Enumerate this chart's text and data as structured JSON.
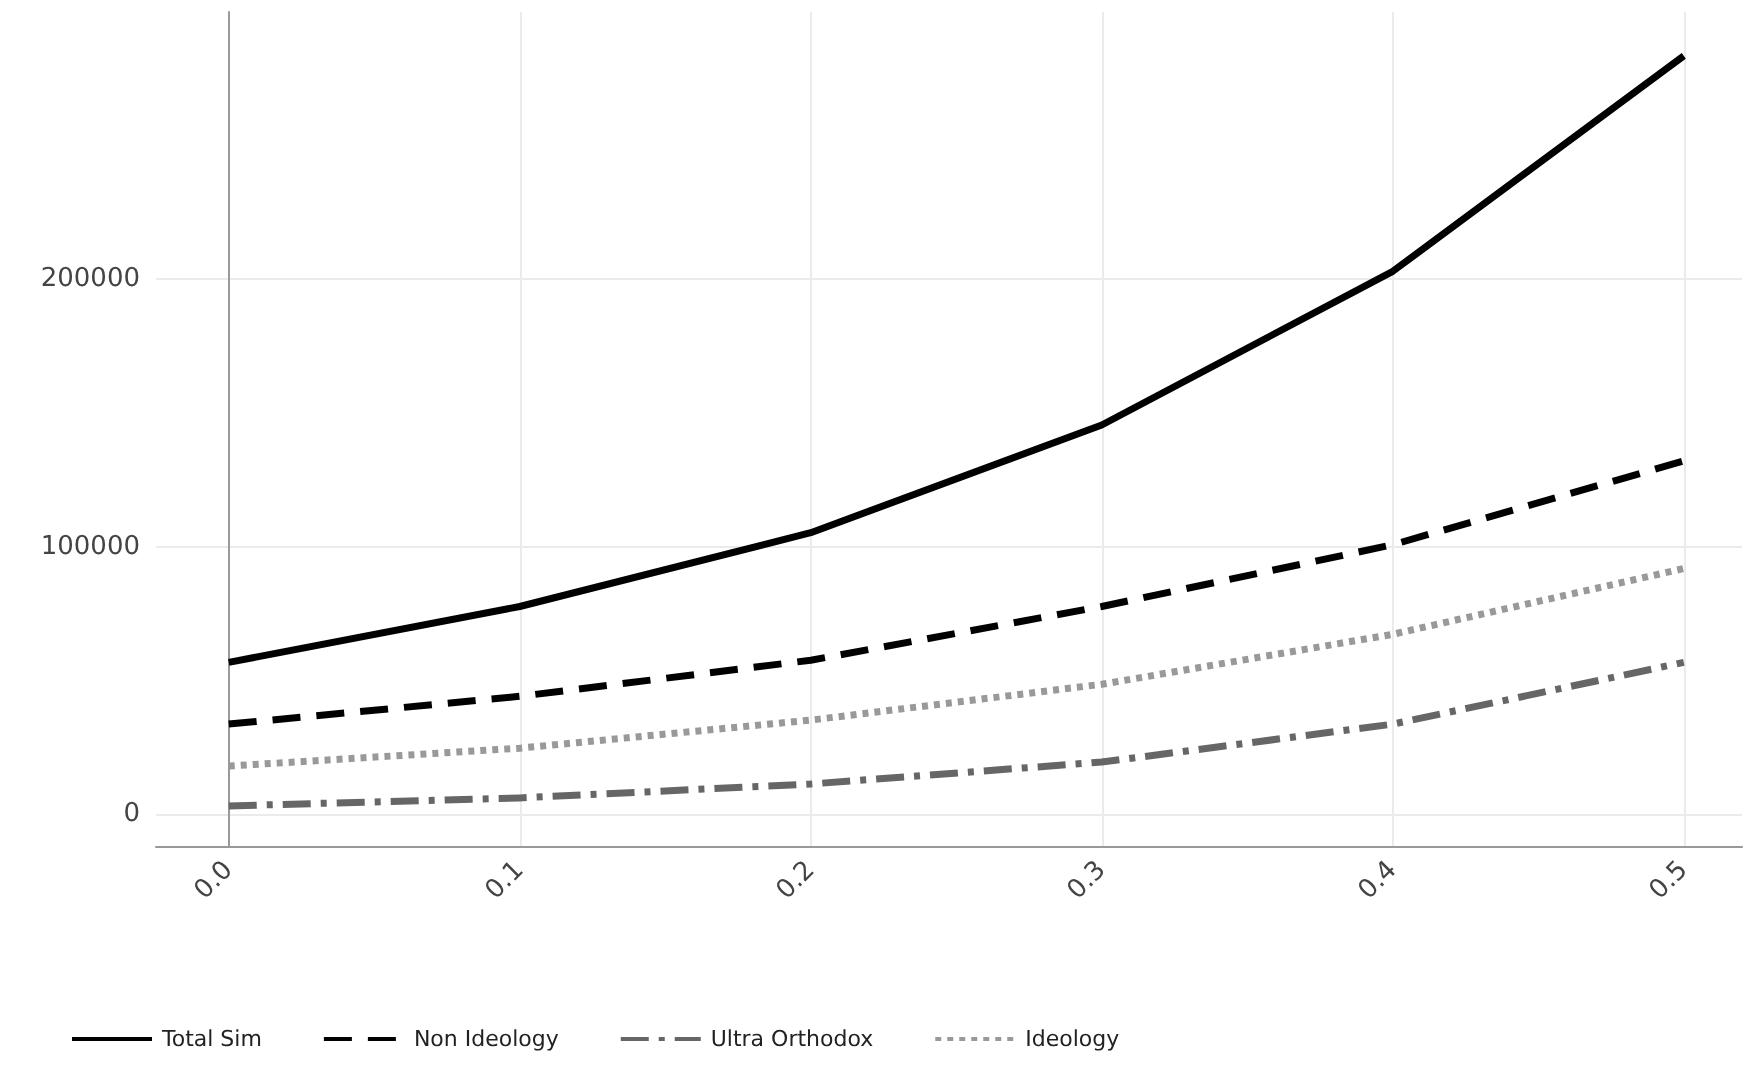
{
  "chart_data": {
    "type": "line",
    "x": [
      0.0,
      0.1,
      0.2,
      0.3,
      0.4,
      0.5
    ],
    "series": [
      {
        "name": "Total Sim",
        "color": "#000000",
        "line_style": "solid",
        "values": [
          56700,
          77600,
          105200,
          145500,
          203000,
          283600
        ]
      },
      {
        "name": "Non Ideology",
        "color": "#000000",
        "line_style": "dashed",
        "values": [
          33600,
          44000,
          57500,
          77600,
          100700,
          132100
        ]
      },
      {
        "name": "Ultra Orthodox",
        "color": "#666666",
        "line_style": "dashdot",
        "values": [
          3000,
          6000,
          11200,
          19400,
          33600,
          56700
        ]
      },
      {
        "name": "Ideology",
        "color": "#999999",
        "line_style": "dotted",
        "values": [
          17900,
          24600,
          35100,
          48500,
          67200,
          91800
        ]
      }
    ],
    "xlim": [
      -0.025,
      0.52
    ],
    "xticks": [
      {
        "value": 0,
        "label": "0.0"
      },
      {
        "value": 0.1,
        "label": "0.1"
      },
      {
        "value": 0.2,
        "label": "0.2"
      },
      {
        "value": 0.3,
        "label": "0.3"
      },
      {
        "value": 0.4,
        "label": "0.4"
      },
      {
        "value": 0.5,
        "label": "0.5"
      }
    ],
    "ylim": [
      -12000,
      300000
    ],
    "yticks": [
      0,
      100000,
      200000
    ],
    "grid": true,
    "legend": "bottom",
    "marker": "none"
  }
}
